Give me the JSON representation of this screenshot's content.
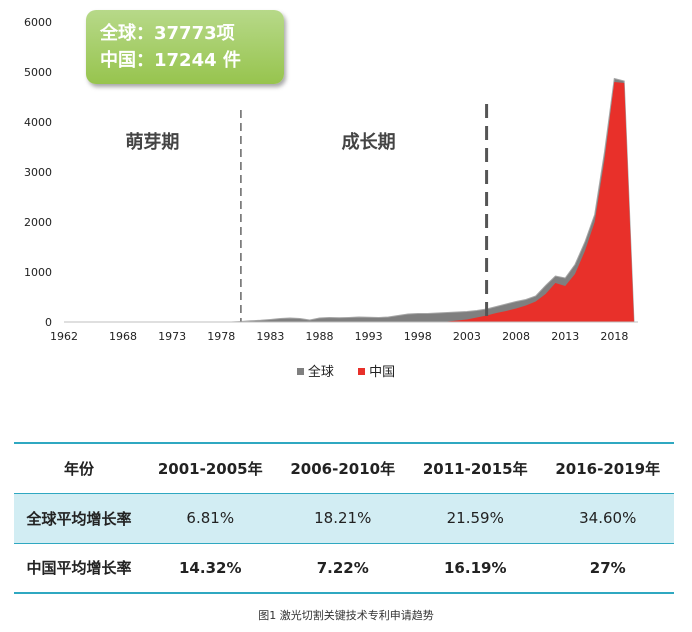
{
  "chart_data": {
    "type": "area",
    "x_tick_labels": [
      "1962",
      "1968",
      "1973",
      "1978",
      "1983",
      "1988",
      "1993",
      "1998",
      "2003",
      "2008",
      "2013",
      "2018"
    ],
    "y_tick_labels": [
      "0",
      "1000",
      "2000",
      "3000",
      "4000",
      "5000",
      "6000"
    ],
    "xlim": [
      1962,
      2020
    ],
    "ylim": [
      0,
      6000
    ],
    "legend_position": "bottom",
    "series": [
      {
        "name": "全球",
        "color": "#7f7f7f",
        "points": [
          [
            1962,
            0
          ],
          [
            1979,
            0
          ],
          [
            1980,
            10
          ],
          [
            1981,
            25
          ],
          [
            1982,
            35
          ],
          [
            1983,
            50
          ],
          [
            1984,
            70
          ],
          [
            1985,
            80
          ],
          [
            1986,
            70
          ],
          [
            1987,
            40
          ],
          [
            1988,
            80
          ],
          [
            1989,
            90
          ],
          [
            1990,
            85
          ],
          [
            1991,
            90
          ],
          [
            1992,
            100
          ],
          [
            1993,
            95
          ],
          [
            1994,
            90
          ],
          [
            1995,
            100
          ],
          [
            1996,
            130
          ],
          [
            1997,
            160
          ],
          [
            1998,
            170
          ],
          [
            1999,
            170
          ],
          [
            2000,
            180
          ],
          [
            2001,
            190
          ],
          [
            2002,
            200
          ],
          [
            2003,
            210
          ],
          [
            2004,
            230
          ],
          [
            2005,
            260
          ],
          [
            2006,
            310
          ],
          [
            2007,
            360
          ],
          [
            2008,
            410
          ],
          [
            2009,
            450
          ],
          [
            2010,
            520
          ],
          [
            2011,
            730
          ],
          [
            2012,
            920
          ],
          [
            2013,
            880
          ],
          [
            2014,
            1150
          ],
          [
            2015,
            1600
          ],
          [
            2016,
            2150
          ],
          [
            2017,
            3400
          ],
          [
            2018,
            4870
          ],
          [
            2019,
            4820
          ],
          [
            2020,
            0
          ]
        ]
      },
      {
        "name": "中国",
        "color": "#e8302a",
        "points": [
          [
            1962,
            0
          ],
          [
            1999,
            0
          ],
          [
            2000,
            5
          ],
          [
            2001,
            10
          ],
          [
            2002,
            30
          ],
          [
            2003,
            50
          ],
          [
            2004,
            90
          ],
          [
            2005,
            130
          ],
          [
            2006,
            180
          ],
          [
            2007,
            220
          ],
          [
            2008,
            270
          ],
          [
            2009,
            330
          ],
          [
            2010,
            410
          ],
          [
            2011,
            560
          ],
          [
            2012,
            780
          ],
          [
            2013,
            720
          ],
          [
            2014,
            960
          ],
          [
            2015,
            1420
          ],
          [
            2016,
            2000
          ],
          [
            2017,
            3250
          ],
          [
            2018,
            4800
          ],
          [
            2019,
            4780
          ],
          [
            2020,
            0
          ]
        ]
      }
    ],
    "dividers": [
      1980,
      2005
    ],
    "phase_labels": [
      {
        "text": "萌芽期",
        "x": 1971
      },
      {
        "text": "成长期",
        "x": 1993
      }
    ]
  },
  "callout": {
    "line1": "全球：37773项",
    "line2": "中国：17244 件"
  },
  "table": {
    "header": [
      "年份",
      "2001-2005年",
      "2006-2010年",
      "2011-2015年",
      "2016-2019年"
    ],
    "rows": [
      {
        "label": "全球平均增长率",
        "values": [
          "6.81%",
          "18.21%",
          "21.59%",
          "34.60%"
        ]
      },
      {
        "label": "中国平均增长率",
        "values": [
          "14.32%",
          "7.22%",
          "16.19%",
          "27%"
        ]
      }
    ]
  },
  "caption": "图1 激光切割关键技术专利申请趋势"
}
